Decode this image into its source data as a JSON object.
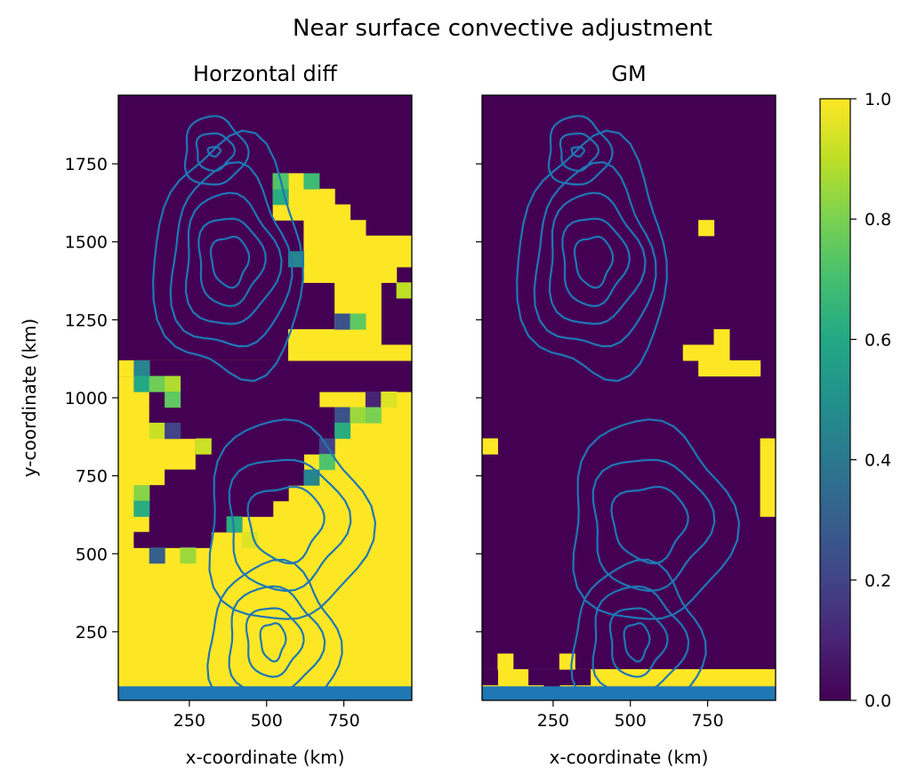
{
  "chart_data": {
    "type": "heatmap",
    "suptitle": "Near surface convective adjustment",
    "colormap": "viridis",
    "xlabel": "x-coordinate (km)",
    "ylabel": "y-coordinate (km)",
    "xlim": [
      20,
      970
    ],
    "ylim": [
      30,
      1970
    ],
    "grid": false,
    "contour_color": "#1f77b4",
    "x_ticks": [
      250,
      500,
      750
    ],
    "y_ticks": [
      250,
      500,
      750,
      1000,
      1250,
      1500,
      1750
    ],
    "grid_spec": {
      "x0": 20,
      "y0": 30,
      "cell": 50,
      "nx": 19,
      "ny": 39
    },
    "colorbar": {
      "ticks": [
        0.0,
        0.2,
        0.4,
        0.6,
        0.8,
        1.0
      ],
      "tick_labels": [
        "0.0",
        "0.2",
        "0.4",
        "0.6",
        "0.8",
        "1.0"
      ],
      "range": [
        0,
        1
      ]
    },
    "panels": [
      {
        "title": "Horzontal diff",
        "show_ylabels": true,
        "fills": [
          {
            "x0": 20,
            "x1": 970,
            "y0": 30,
            "y1": 1120,
            "v": 1
          },
          {
            "x0": 20,
            "x1": 970,
            "y0": 1070,
            "y1": 1120,
            "v": 0
          },
          {
            "x0": 20,
            "x1": 120,
            "y0": 1070,
            "y1": 1120,
            "v": 1
          },
          {
            "x0": 120,
            "x1": 970,
            "y0": 1020,
            "y1": 1070,
            "v": 0
          },
          {
            "x0": 120,
            "x1": 670,
            "y0": 970,
            "y1": 1020,
            "v": 0
          },
          {
            "x0": 120,
            "x1": 720,
            "y0": 920,
            "y1": 970,
            "v": 0
          },
          {
            "x0": 170,
            "x1": 720,
            "y0": 870,
            "y1": 920,
            "v": 0
          },
          {
            "x0": 270,
            "x1": 670,
            "y0": 820,
            "y1": 870,
            "v": 0
          },
          {
            "x0": 270,
            "x1": 620,
            "y0": 770,
            "y1": 820,
            "v": 0
          },
          {
            "x0": 170,
            "x1": 620,
            "y0": 720,
            "y1": 770,
            "v": 0
          },
          {
            "x0": 120,
            "x1": 570,
            "y0": 670,
            "y1": 720,
            "v": 0
          },
          {
            "x0": 120,
            "x1": 520,
            "y0": 620,
            "y1": 670,
            "v": 0
          },
          {
            "x0": 120,
            "x1": 420,
            "y0": 570,
            "y1": 620,
            "v": 0
          },
          {
            "x0": 70,
            "x1": 320,
            "y0": 520,
            "y1": 570,
            "v": 0
          },
          {
            "x0": 570,
            "x1": 670,
            "y0": 1120,
            "y1": 1220,
            "v": 1
          },
          {
            "x0": 670,
            "x1": 970,
            "y0": 1120,
            "y1": 1170,
            "v": 1
          },
          {
            "x0": 670,
            "x1": 870,
            "y0": 1170,
            "y1": 1220,
            "v": 1
          },
          {
            "x0": 720,
            "x1": 870,
            "y0": 1220,
            "y1": 1370,
            "v": 1
          },
          {
            "x0": 620,
            "x1": 920,
            "y0": 1370,
            "y1": 1420,
            "v": 1
          },
          {
            "x0": 620,
            "x1": 970,
            "y0": 1420,
            "y1": 1520,
            "v": 1
          },
          {
            "x0": 620,
            "x1": 820,
            "y0": 1520,
            "y1": 1570,
            "v": 1
          },
          {
            "x0": 520,
            "x1": 770,
            "y0": 1570,
            "y1": 1620,
            "v": 1
          },
          {
            "x0": 520,
            "x1": 720,
            "y0": 1620,
            "y1": 1670,
            "v": 1
          },
          {
            "x0": 520,
            "x1": 620,
            "y0": 1670,
            "y1": 1720,
            "v": 1
          }
        ],
        "cells": [
          [
            70,
            1070,
            0.45
          ],
          [
            70,
            1020,
            0.6
          ],
          [
            120,
            1020,
            0.78
          ],
          [
            170,
            1020,
            0.88
          ],
          [
            170,
            970,
            0.75
          ],
          [
            120,
            870,
            0.92
          ],
          [
            170,
            870,
            0.2
          ],
          [
            270,
            820,
            0.92
          ],
          [
            70,
            670,
            0.82
          ],
          [
            70,
            620,
            0.62
          ],
          [
            370,
            570,
            0.62
          ],
          [
            420,
            520,
            0.95
          ],
          [
            120,
            470,
            0.3
          ],
          [
            220,
            470,
            0.85
          ],
          [
            720,
            1220,
            0.25
          ],
          [
            770,
            1220,
            0.75
          ],
          [
            820,
            970,
            0.1
          ],
          [
            720,
            920,
            0.25
          ],
          [
            770,
            920,
            0.85
          ],
          [
            820,
            920,
            0.8
          ],
          [
            870,
            970,
            0.95
          ],
          [
            720,
            870,
            0.62
          ],
          [
            670,
            820,
            0.2
          ],
          [
            670,
            770,
            0.72
          ],
          [
            620,
            720,
            0.45
          ],
          [
            570,
            1420,
            0.45
          ],
          [
            920,
            1320,
            0.9
          ],
          [
            520,
            1620,
            0.62
          ],
          [
            520,
            1670,
            0.72
          ],
          [
            620,
            1670,
            0.68
          ]
        ]
      },
      {
        "title": "GM",
        "show_ylabels": false,
        "fills": [
          {
            "x0": 20,
            "x1": 970,
            "y0": 30,
            "y1": 130,
            "v": 1
          },
          {
            "x0": 20,
            "x1": 70,
            "y0": 80,
            "y1": 130,
            "v": 0
          },
          {
            "x0": 170,
            "x1": 220,
            "y0": 80,
            "y1": 130,
            "v": 0
          },
          {
            "x0": 220,
            "x1": 270,
            "y0": 30,
            "y1": 130,
            "v": 0
          },
          {
            "x0": 320,
            "x1": 970,
            "y0": 80,
            "y1": 130,
            "v": 0
          },
          {
            "x0": 320,
            "x1": 970,
            "y0": 80,
            "y1": 130,
            "v": 1
          },
          {
            "x0": 320,
            "x1": 370,
            "y0": 80,
            "y1": 130,
            "v": 0
          },
          {
            "x0": 270,
            "x1": 320,
            "y0": 80,
            "y1": 130,
            "v": 0
          }
        ],
        "cells": [
          [
            20,
            820,
            1
          ],
          [
            920,
            620,
            1
          ],
          [
            920,
            670,
            1
          ],
          [
            920,
            720,
            1
          ],
          [
            920,
            770,
            1
          ],
          [
            920,
            820,
            1
          ],
          [
            720,
            1070,
            1
          ],
          [
            770,
            1070,
            1
          ],
          [
            820,
            1070,
            1
          ],
          [
            870,
            1070,
            1
          ],
          [
            670,
            1120,
            1
          ],
          [
            720,
            1120,
            1
          ],
          [
            770,
            1120,
            1
          ],
          [
            770,
            1170,
            1
          ],
          [
            720,
            1520,
            1
          ],
          [
            70,
            130,
            1
          ],
          [
            270,
            130,
            1
          ]
        ]
      }
    ]
  }
}
